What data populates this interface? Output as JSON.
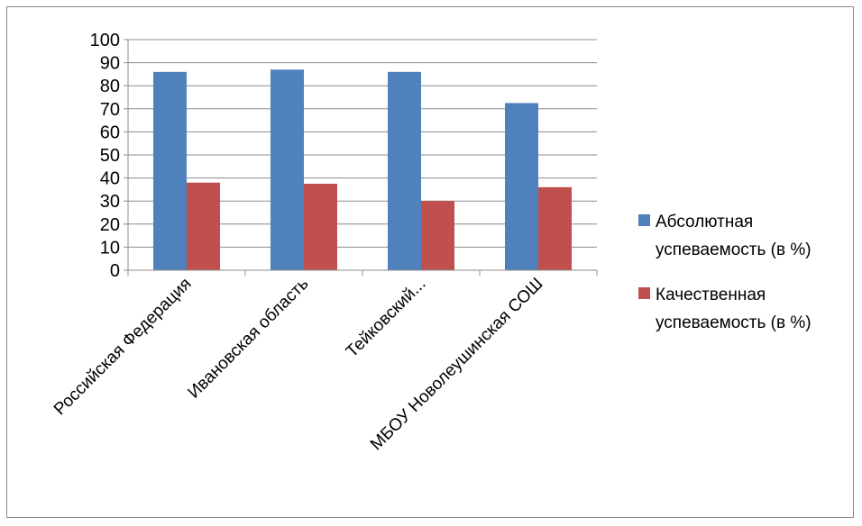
{
  "chart_data": {
    "type": "bar",
    "categories": [
      "Российская Федерация",
      "Ивановская область",
      "Тейковский...",
      "МБОУ Новолеушинская СОШ"
    ],
    "series": [
      {
        "name": "Абсолютная успеваемость (в %)",
        "values": [
          86,
          87,
          86,
          72.5
        ],
        "color": "#4F81BD"
      },
      {
        "name": "Качественная успеваемость (в %)",
        "values": [
          38,
          37.5,
          30,
          36
        ],
        "color": "#C0504D"
      }
    ],
    "legend_lines": [
      [
        "Абсолютная",
        "успеваемость (в %)"
      ],
      [
        "Качественная",
        "успеваемость (в %)"
      ]
    ],
    "yticks": [
      "0",
      "10",
      "20",
      "30",
      "40",
      "50",
      "60",
      "70",
      "80",
      "90",
      "100"
    ],
    "ylim": [
      0,
      100
    ],
    "grid": true,
    "legend_position": "right"
  }
}
